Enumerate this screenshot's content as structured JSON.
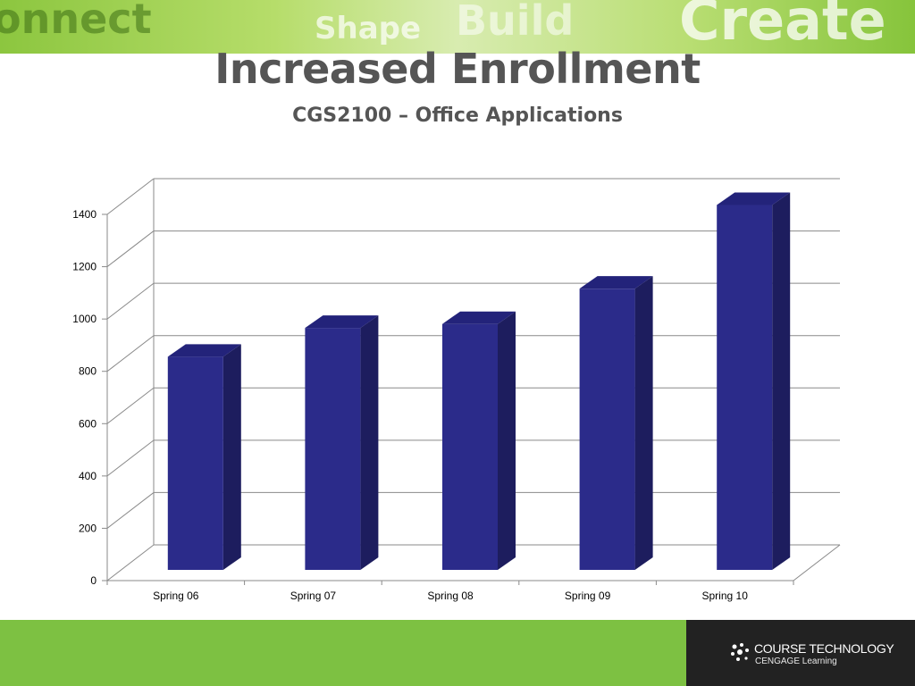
{
  "banner": {
    "words": [
      "onnect",
      "Shape",
      "Build",
      "Create"
    ]
  },
  "slide": {
    "title": "Increased Enrollment",
    "subtitle": "CGS2100 – Office Applications"
  },
  "chart_data": {
    "type": "bar",
    "style": "3d-column",
    "categories": [
      "Spring 06",
      "Spring 07",
      "Spring 08",
      "Spring 09",
      "Spring 10"
    ],
    "values": [
      815,
      925,
      940,
      1075,
      1395
    ],
    "yticks": [
      0,
      200,
      400,
      600,
      800,
      1000,
      1200,
      1400
    ],
    "ylim": [
      0,
      1400
    ],
    "grid": true,
    "bar_color": "#2b2b8a",
    "bar_side_color": "#1d1d5e",
    "bar_top_color": "#23237a"
  },
  "footer": {
    "brand_line1": "COURSE TECHNOLOGY",
    "brand_line2": "CENGAGE Learning"
  },
  "colors": {
    "green": "#7dc142",
    "dark": "#222222",
    "title_gray": "#555555"
  }
}
